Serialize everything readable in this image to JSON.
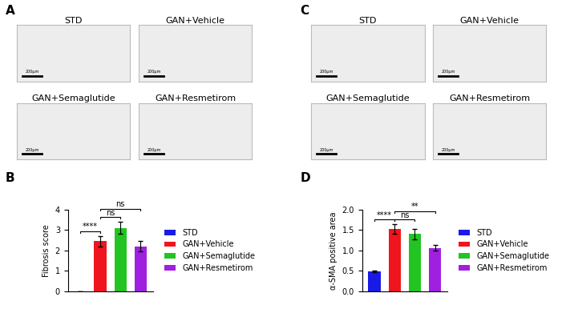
{
  "image_panels": [
    {
      "panel": "A",
      "images": [
        {
          "title": "STD",
          "scale_bar": "200μm"
        },
        {
          "title": "GAN+Vehicle",
          "scale_bar": "200μm"
        },
        {
          "title": "GAN+Semaglutide",
          "scale_bar": "200μm"
        },
        {
          "title": "GAN+Resmetirom",
          "scale_bar": "200μm"
        }
      ]
    },
    {
      "panel": "C",
      "images": [
        {
          "title": "STD",
          "scale_bar": "200μm"
        },
        {
          "title": "GAN+Vehicle",
          "scale_bar": "200μm"
        },
        {
          "title": "GAN+Semaglutide",
          "scale_bar": "200μm"
        },
        {
          "title": "GAN+Resmetirom",
          "scale_bar": "200μm"
        }
      ]
    }
  ],
  "chart_data": [
    {
      "panel": "B",
      "type": "bar",
      "y_label": "Fibrosis score",
      "categories": [
        "STD",
        "GAN+Vehicle",
        "GAN+Semaglutide",
        "GAN+Resmetirom"
      ],
      "values": [
        0,
        2.45,
        3.1,
        2.2
      ],
      "errors": [
        0,
        0.25,
        0.3,
        0.25
      ],
      "colors": [
        "#1a1ae6",
        "#f0141e",
        "#22c422",
        "#a020e0"
      ],
      "ylim": [
        0,
        4
      ],
      "yticks": [
        0,
        1,
        2,
        3,
        4
      ],
      "tick_labels": "y",
      "legend": "right",
      "significance": [
        {
          "between": [
            "STD",
            "GAN+Vehicle"
          ],
          "label": "****"
        },
        {
          "between": [
            "GAN+Vehicle",
            "GAN+Semaglutide"
          ],
          "label": "ns"
        },
        {
          "between": [
            "GAN+Vehicle",
            "GAN+Resmetirom"
          ],
          "label": "ns"
        }
      ]
    },
    {
      "panel": "D",
      "type": "bar",
      "y_label": "α-SMA positive area",
      "categories": [
        "STD",
        "GAN+Vehicle",
        "GAN+Semaglutide",
        "GAN+Resmetirom"
      ],
      "values": [
        0.48,
        1.52,
        1.4,
        1.06
      ],
      "errors": [
        0.02,
        0.12,
        0.12,
        0.07
      ],
      "colors": [
        "#1a1ae6",
        "#f0141e",
        "#22c422",
        "#a020e0"
      ],
      "ylim": [
        0,
        2.0
      ],
      "yticks": [
        {
          "value": 0,
          "label": "0.0"
        },
        {
          "value": 0.5,
          "label": "0.5"
        },
        {
          "value": 1.0,
          "label": "1.0"
        },
        {
          "value": 1.5,
          "label": "1.5"
        },
        {
          "value": 2.0,
          "label": "2.0"
        }
      ],
      "tick_labels": "y",
      "legend": "right",
      "significance": [
        {
          "between": [
            "STD",
            "GAN+Vehicle"
          ],
          "label": "****"
        },
        {
          "between": [
            "GAN+Vehicle",
            "GAN+Semaglutide"
          ],
          "label": "ns"
        },
        {
          "between": [
            "GAN+Vehicle",
            "GAN+Resmetirom"
          ],
          "label": "**"
        }
      ]
    }
  ]
}
